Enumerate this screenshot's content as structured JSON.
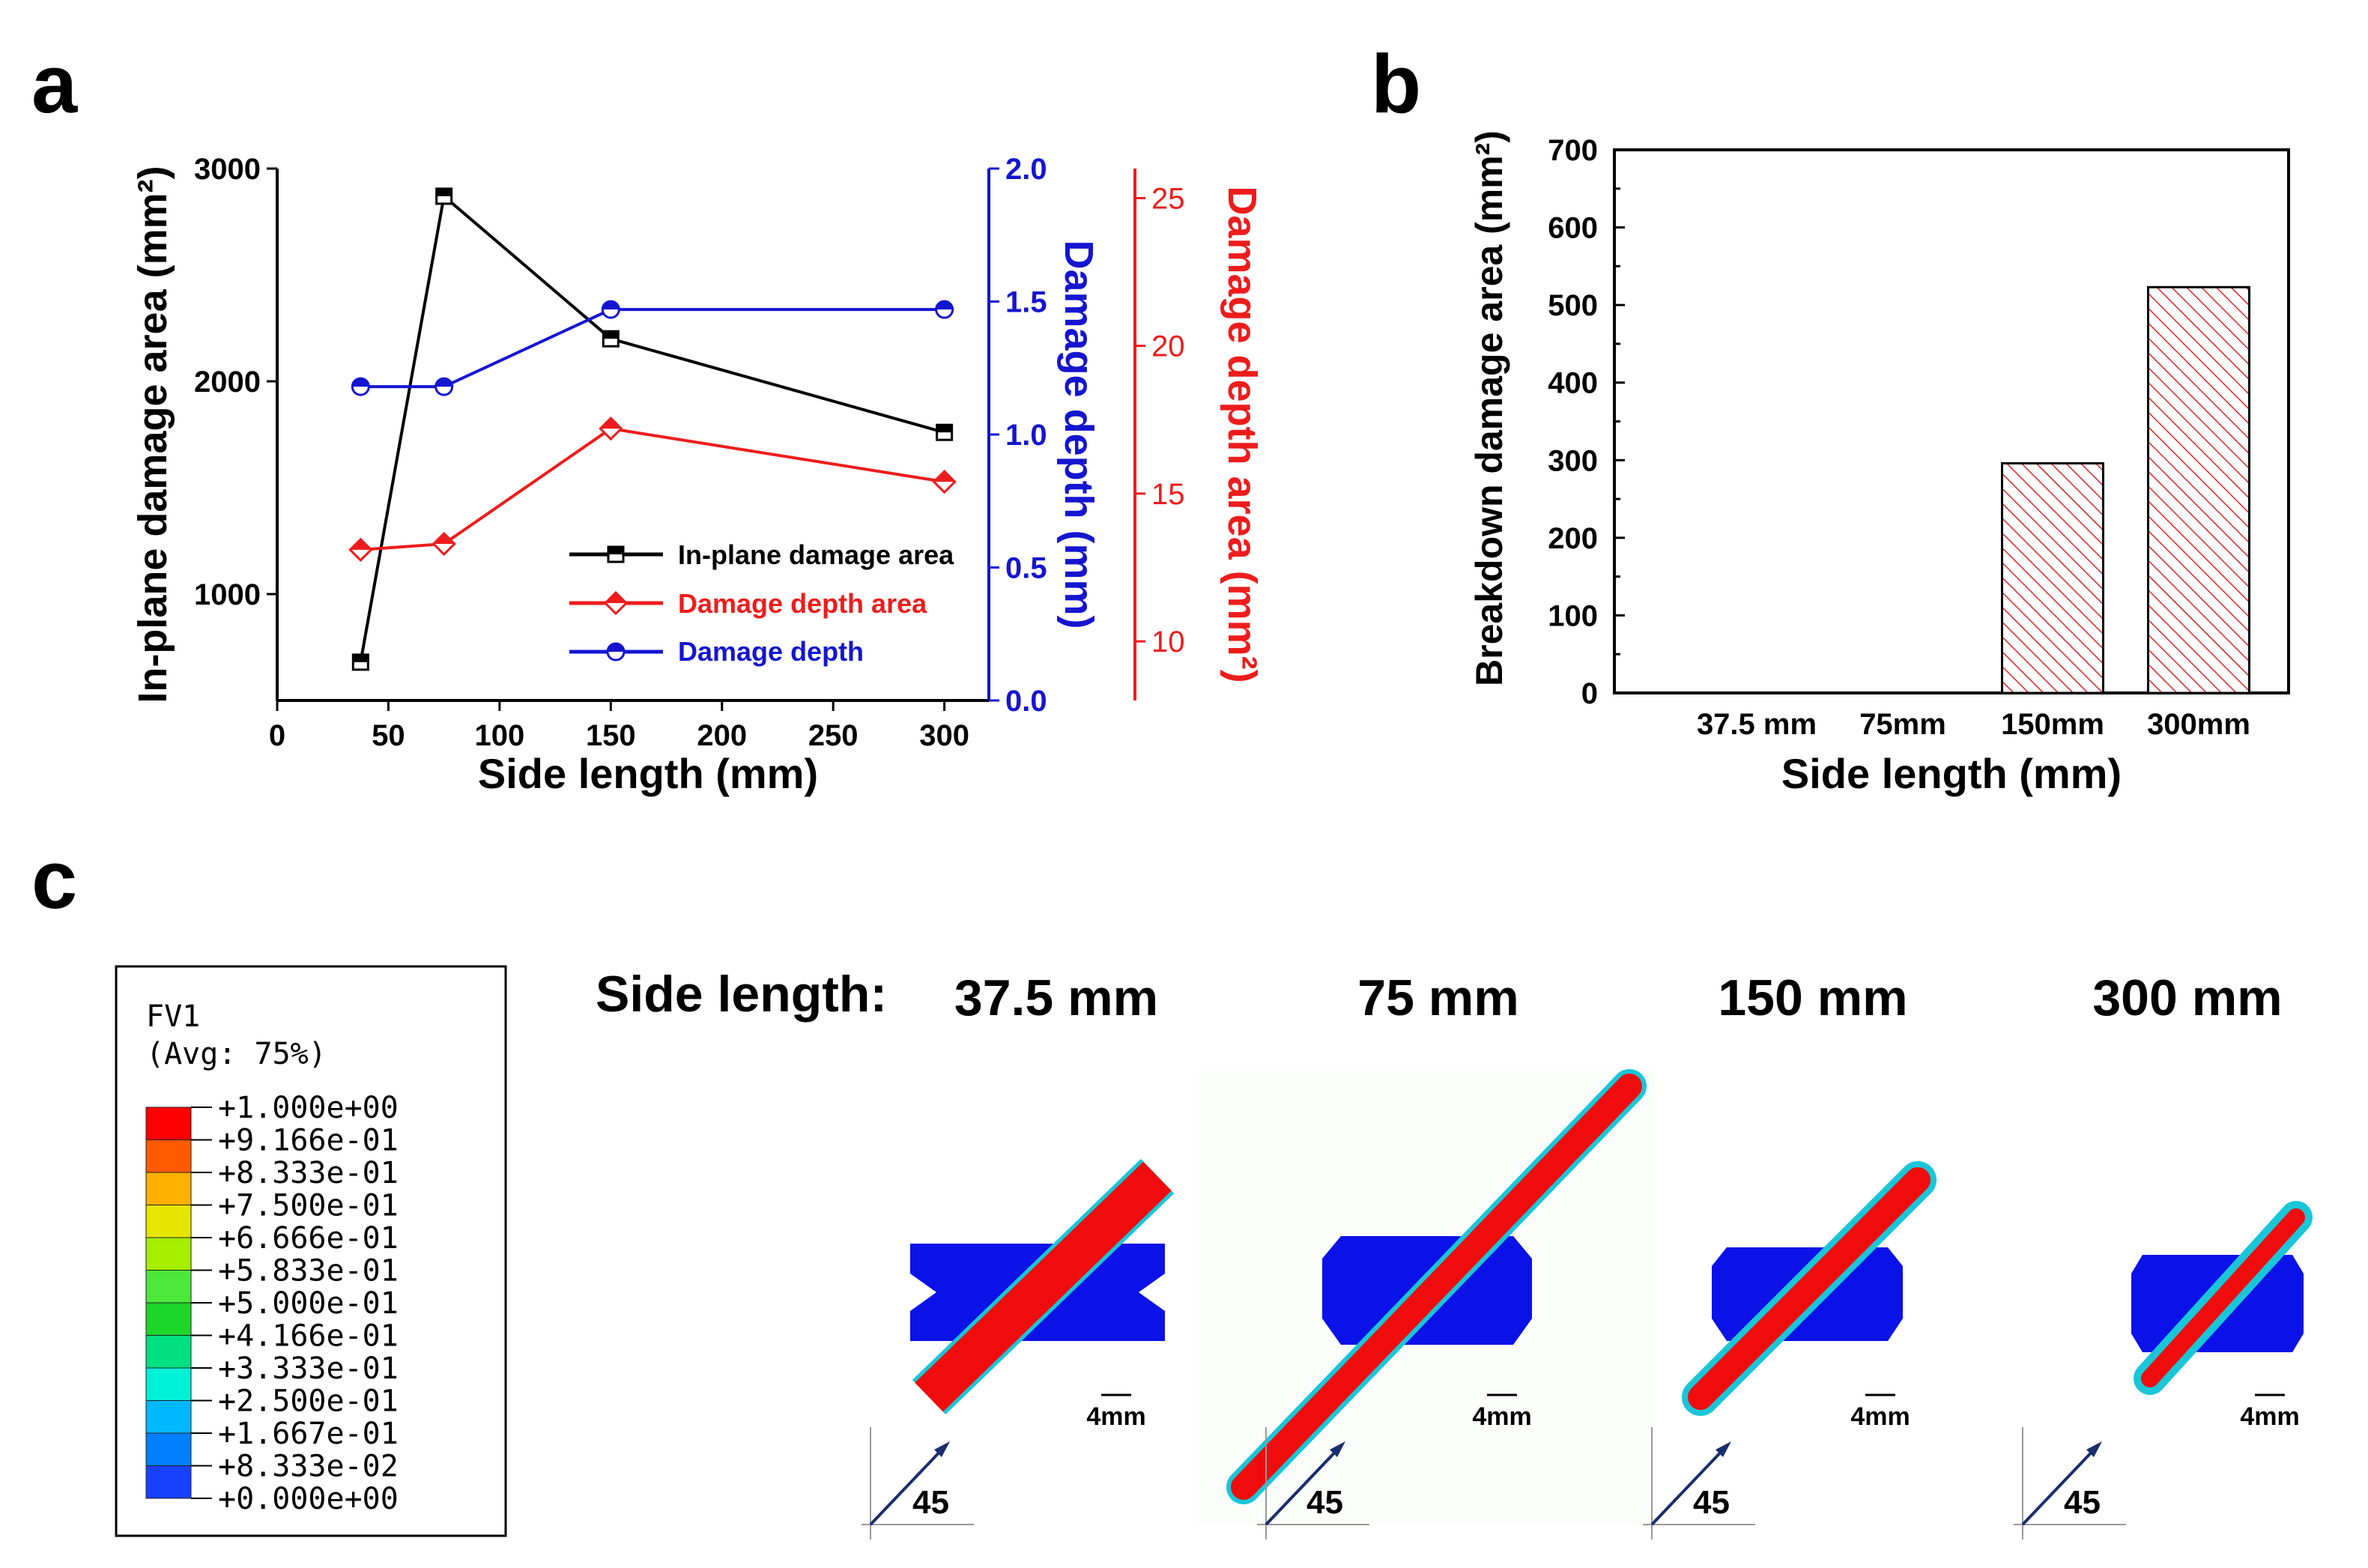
{
  "panel_labels": {
    "a": "a",
    "b": "b",
    "c": "c"
  },
  "colors": {
    "black": "#000000",
    "blue": "#1515d0",
    "red": "#ee1c1c",
    "bar_hatch": "#e02626"
  },
  "chart_data": [
    {
      "id": "a",
      "type": "line",
      "xlabel": "Side length (mm)",
      "xlim": [
        0,
        320
      ],
      "xticks": [
        0,
        50,
        100,
        150,
        200,
        250,
        300
      ],
      "ylabel_left": "In-plane damage area (mm²)",
      "ylim_left": [
        500,
        3000
      ],
      "yticks_left": [
        1000,
        2000,
        3000
      ],
      "ylabel_right1": "Damage depth (mm)",
      "ylim_right1": [
        0.0,
        2.0
      ],
      "yticks_right1": [
        "0.0",
        "0.5",
        "1.0",
        "1.5",
        "2.0"
      ],
      "ylabel_right2": "Damage depth area (mm²)",
      "ylim_right2": [
        8,
        26
      ],
      "yticks_right2": [
        10,
        15,
        20,
        25
      ],
      "x": [
        37.5,
        75,
        150,
        300
      ],
      "series": [
        {
          "name": "In-plane damage area",
          "axis": "left",
          "color": "#000000",
          "marker": "square-half",
          "values": [
            680,
            2870,
            2200,
            1760
          ]
        },
        {
          "name": "Damage depth area",
          "axis": "right2",
          "color": "#ee1c1c",
          "marker": "diamond-half",
          "values": [
            13.1,
            13.3,
            17.2,
            15.4
          ]
        },
        {
          "name": "Damage depth",
          "axis": "right1",
          "color": "#1515d0",
          "marker": "circle-half",
          "values": [
            1.18,
            1.18,
            1.47,
            1.47
          ]
        }
      ],
      "legend": [
        "In-plane damage area",
        "Damage depth area",
        "Damage depth"
      ]
    },
    {
      "id": "b",
      "type": "bar",
      "xlabel": "Side length (mm)",
      "ylabel": "Breakdown damage area (mm²)",
      "ylim": [
        0,
        700
      ],
      "yticks": [
        0,
        100,
        200,
        300,
        400,
        500,
        600,
        700
      ],
      "categories": [
        "37.5 mm",
        "75mm",
        "150mm",
        "300mm"
      ],
      "values": [
        0,
        0,
        296,
        523
      ]
    }
  ],
  "panel_c": {
    "legend_title": "FV1",
    "legend_subtitle": "(Avg: 75%)",
    "legend_levels": [
      "+1.000e+00",
      "+9.166e-01",
      "+8.333e-01",
      "+7.500e-01",
      "+6.666e-01",
      "+5.833e-01",
      "+5.000e-01",
      "+4.166e-01",
      "+3.333e-01",
      "+2.500e-01",
      "+1.667e-01",
      "+8.333e-02",
      "+0.000e+00"
    ],
    "legend_colors": [
      "#ff0000",
      "#ff5a00",
      "#ffb000",
      "#e6e600",
      "#a6ef00",
      "#4ce83a",
      "#1ed52a",
      "#00e080",
      "#00f0d8",
      "#00b8ff",
      "#0080ff",
      "#1840ff"
    ],
    "side_label": "Side length:",
    "samples": [
      {
        "label": "37.5 mm",
        "scale": "4mm",
        "angle": "45"
      },
      {
        "label": "75 mm",
        "scale": "4mm",
        "angle": "45"
      },
      {
        "label": "150 mm",
        "scale": "4mm",
        "angle": "45"
      },
      {
        "label": "300 mm",
        "scale": "4mm",
        "angle": "45"
      }
    ]
  }
}
